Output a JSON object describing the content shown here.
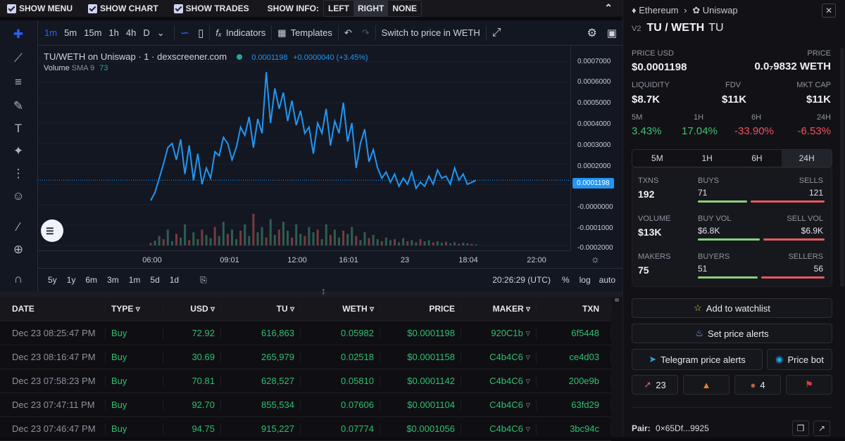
{
  "toolbar": {
    "show_menu": "SHOW MENU",
    "show_chart": "SHOW CHART",
    "show_trades": "SHOW TRADES",
    "show_info": "SHOW INFO:",
    "info_options": [
      "LEFT",
      "RIGHT",
      "NONE"
    ]
  },
  "tv": {
    "timeframes": [
      "1m",
      "5m",
      "15m",
      "1h",
      "4h",
      "D"
    ],
    "indicators": "Indicators",
    "templates": "Templates",
    "switch": "Switch to price in WETH",
    "legend_pair": "TU/WETH on Uniswap · 1 · dexscreener.com",
    "legend_price": "0.0001198",
    "legend_change": "+0.0000040 (+3.45%)",
    "volume_label": "Volume",
    "volume_sma": "SMA 9",
    "volume_value": "73",
    "y_ticks": [
      "0.0007000",
      "0.0006000",
      "0.0005000",
      "0.0004000",
      "0.0003000",
      "0.0002000",
      "0.0001198",
      "-0.0000000",
      "-0.0001000",
      "-0.0002000"
    ],
    "x_ticks": [
      "06:00",
      "09:01",
      "12:00",
      "16:01",
      "23",
      "18:04",
      "22:00"
    ],
    "ranges": [
      "5y",
      "1y",
      "6m",
      "3m",
      "1m",
      "5d",
      "1d"
    ],
    "clock": "20:26:29 (UTC)",
    "pct": "%",
    "log": "log",
    "auto": "auto"
  },
  "chart_data": {
    "type": "line",
    "series": [
      {
        "values": [
          2e-05,
          6e-05,
          0.00013,
          0.0002,
          0.00028,
          0.0003,
          0.00022,
          0.00032,
          0.00015,
          0.00029,
          0.00012,
          0.00025,
          0.0001,
          0.00018,
          0.00013,
          0.00026,
          0.00024,
          0.00033,
          0.0003,
          0.00022,
          0.00028,
          0.00038,
          0.00034,
          0.00043,
          0.00028,
          0.00042,
          0.00035,
          0.00065,
          0.0004,
          0.00057,
          0.00047,
          0.00055,
          0.00041,
          0.00051,
          0.00039,
          0.00046,
          0.00035,
          0.00038,
          0.00025,
          0.0004,
          0.00035,
          0.00047,
          0.00029,
          0.00041,
          0.00035,
          0.0005,
          0.00031,
          0.0004,
          0.00018,
          0.0003,
          0.00037,
          0.00021,
          0.00027,
          0.00018,
          0.00013,
          0.00016,
          0.00011,
          0.00015,
          9e-05,
          0.00013,
          0.0001,
          0.00016,
          8e-05,
          0.00011,
          9e-05,
          0.00014,
          0.0001,
          0.00017,
          0.00013,
          0.00014,
          0.0001,
          0.00018,
          0.00012,
          0.00015,
          0.0001,
          0.00011,
          0.0001198
        ]
      }
    ],
    "volume": [
      5,
      9,
      18,
      12,
      30,
      8,
      22,
      15,
      40,
      10,
      25,
      12,
      30,
      20,
      14,
      35,
      18,
      45,
      22,
      30,
      12,
      28,
      40,
      18,
      60,
      25,
      35,
      15,
      50,
      20,
      30,
      45,
      28,
      15,
      40,
      22,
      18,
      35,
      25,
      30,
      12,
      40,
      20,
      30,
      15,
      28,
      22,
      35,
      18,
      10,
      25,
      14,
      20,
      12,
      8,
      15,
      10,
      12,
      6,
      14,
      8,
      10,
      6,
      12,
      8,
      10,
      6,
      8,
      5,
      7,
      4,
      6,
      3,
      5,
      4,
      3,
      2
    ],
    "ylim": [
      -0.0002,
      0.0007
    ],
    "x_ticks": [
      "06:00",
      "09:01",
      "12:00",
      "16:01",
      "23",
      "18:04",
      "22:00"
    ]
  },
  "trades": {
    "headers": [
      "DATE",
      "TYPE",
      "USD",
      "TU",
      "WETH",
      "PRICE",
      "MAKER",
      "TXN"
    ],
    "rows": [
      {
        "date": "Dec 23 08:25:47 PM",
        "type": "Buy",
        "usd": "72.92",
        "tu": "616,863",
        "weth": "0.05982",
        "price": "$0.0001198",
        "maker": "920C1b",
        "txn": "6f5448"
      },
      {
        "date": "Dec 23 08:16:47 PM",
        "type": "Buy",
        "usd": "30.69",
        "tu": "265,979",
        "weth": "0.02518",
        "price": "$0.0001158",
        "maker": "C4b4C6",
        "txn": "ce4d03"
      },
      {
        "date": "Dec 23 07:58:23 PM",
        "type": "Buy",
        "usd": "70.81",
        "tu": "628,527",
        "weth": "0.05810",
        "price": "$0.0001142",
        "maker": "C4b4C6",
        "txn": "200e9b"
      },
      {
        "date": "Dec 23 07:47:11 PM",
        "type": "Buy",
        "usd": "92.70",
        "tu": "855,534",
        "weth": "0.07606",
        "price": "$0.0001104",
        "maker": "C4b4C6",
        "txn": "63fd29"
      },
      {
        "date": "Dec 23 07:46:47 PM",
        "type": "Buy",
        "usd": "94.75",
        "tu": "915,227",
        "weth": "0.07774",
        "price": "$0.0001056",
        "maker": "C4b4C6",
        "txn": "3bc94c"
      }
    ]
  },
  "side": {
    "chain": "Ethereum",
    "dex": "Uniswap",
    "version": "V2",
    "pair": "TU / WETH",
    "token": "TU",
    "price_usd_label": "PRICE USD",
    "price_usd": "$0.0001198",
    "price_label": "PRICE",
    "price_weth": "0.0₇9832 WETH",
    "liquidity_label": "LIQUIDITY",
    "liquidity": "$8.7K",
    "fdv_label": "FDV",
    "fdv": "$11K",
    "mcap_label": "MKT CAP",
    "mcap": "$11K",
    "changes": [
      {
        "label": "5M",
        "value": "3.43%"
      },
      {
        "label": "1H",
        "value": "17.04%"
      },
      {
        "label": "6H",
        "value": "-33.90%"
      },
      {
        "label": "24H",
        "value": "-6.53%"
      }
    ],
    "tabs": [
      "5M",
      "1H",
      "6H",
      "24H"
    ],
    "txns_label": "TXNS",
    "txns": "192",
    "buys_label": "BUYS",
    "buys": "71",
    "sells_label": "SELLS",
    "sells": "121",
    "volume_label": "VOLUME",
    "volume": "$13K",
    "buyvol_label": "BUY VOL",
    "buyvol": "$6.8K",
    "sellvol_label": "SELL VOL",
    "sellvol": "$6.9K",
    "makers_label": "MAKERS",
    "makers": "75",
    "buyers_label": "BUYERS",
    "buyers": "51",
    "sellers_label": "SELLERS",
    "sellers": "56",
    "watchlist": "Add to watchlist",
    "alerts": "Set price alerts",
    "telegram": "Telegram price alerts",
    "pricebot": "Price bot",
    "rocket": "23",
    "poop": "4",
    "pair_label": "Pair:",
    "pair_addr": "0×65Df...9925"
  }
}
